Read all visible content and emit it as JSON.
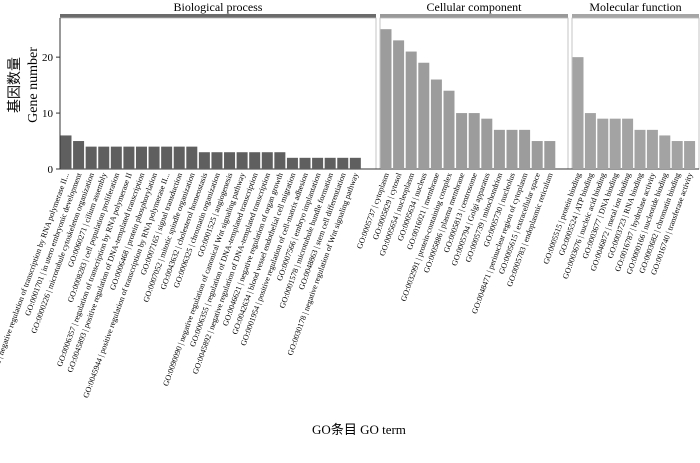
{
  "chart_data": {
    "type": "bar",
    "xlabel": "GO条目 GO term",
    "ylabel_cn": "基因数量",
    "ylabel_en": "Gene number",
    "ylim": [
      0,
      27
    ],
    "yticks": [
      0,
      10,
      20
    ],
    "grid": false,
    "legend": "none",
    "panels": [
      {
        "name": "Biological process",
        "color": "#5f5f5f",
        "header_color": "#6b6b6b",
        "categories": [
          "GO:0000122 | negative regulation of transcription by RNA polymerase II...",
          "GO:0001701 | in utero embryonic development",
          "GO:0000226 | microtubule cytoskeleton organization",
          "GO:0060271 | cilium assembly",
          "GO:0008283 | cell population proliferation",
          "GO:0006357 | regulation of transcription by RNA polymerase II",
          "GO:0045893 | positive regulation of DNA-templated transcription",
          "GO:0006468 | protein phosphorylation",
          "GO:0045944 | positive regulation of transcription by RNA polymerase II...",
          "GO:0007165 | signal transduction",
          "GO:0007052 | mitotic spindle organization",
          "GO:0043632 | cholesterol homeostasis",
          "GO:0006325 | chromatin organization",
          "GO:0001525 | angiogenesis",
          "GO:0090090 | negative regulation of canonical Wnt signaling pathway",
          "GO:0006355 | regulation of DNA-templated transcription",
          "GO:0045892 | negative regulation of DNA-templated transcription",
          "GO:0046621 | negative regulation of organ growth",
          "GO:0042634 | blood vessel endothelial cell migration",
          "GO:0001954 | positive regulation of cell-matrix adhesion",
          "GO:0007566 | embryo implantation",
          "GO:0001578 | microtubule bundle formation",
          "GO:0048863 | stem cell differentiation",
          "GO:0030178 | negative regulation of Wnt signaling pathway"
        ],
        "values": [
          6,
          5,
          4,
          4,
          4,
          4,
          4,
          4,
          4,
          4,
          4,
          3,
          3,
          3,
          3,
          3,
          3,
          3,
          2,
          2,
          2,
          2,
          2,
          2
        ]
      },
      {
        "name": "Cellular component",
        "color": "#9c9c9c",
        "header_color": "#999999",
        "categories": [
          "GO:0005737 | cytoplasm",
          "GO:0005829 | cytosol",
          "GO:0005654 | nucleoplasm",
          "GO:0005634 | nucleus",
          "GO:0016021 | membrane",
          "GO:0032991 | protein-containing complex",
          "GO:0005886 | plasma membrane",
          "GO:0005813 | centrosome",
          "GO:0005794 | Golgi apparatus",
          "GO:0005739 | mitochondrion",
          "GO:0005730 | nucleolus",
          "GO:0048471 | perinuclear region of cytoplasm",
          "GO:0005615 | extracellular space",
          "GO:0005783 | endoplasmic reticulum"
        ],
        "values": [
          25,
          23,
          21,
          19,
          16,
          14,
          10,
          10,
          9,
          7,
          7,
          7,
          5,
          5
        ]
      },
      {
        "name": "Molecular function",
        "color": "#a3a3a3",
        "header_color": "#a6a6a6",
        "categories": [
          "GO:0005515 | protein binding",
          "GO:0005524 | ATP binding",
          "GO:0003676 | nucleic acid binding",
          "GO:0003677 | DNA binding",
          "GO:0046872 | metal ion binding",
          "GO:0003723 | RNA binding",
          "GO:0016787 | hydrolase activity",
          "GO:0000166 | nucleotide binding",
          "GO:0003682 | chromatin binding",
          "GO:0016740 | transferase activity"
        ],
        "values": [
          20,
          10,
          9,
          9,
          9,
          7,
          7,
          6,
          5,
          5
        ]
      }
    ]
  }
}
